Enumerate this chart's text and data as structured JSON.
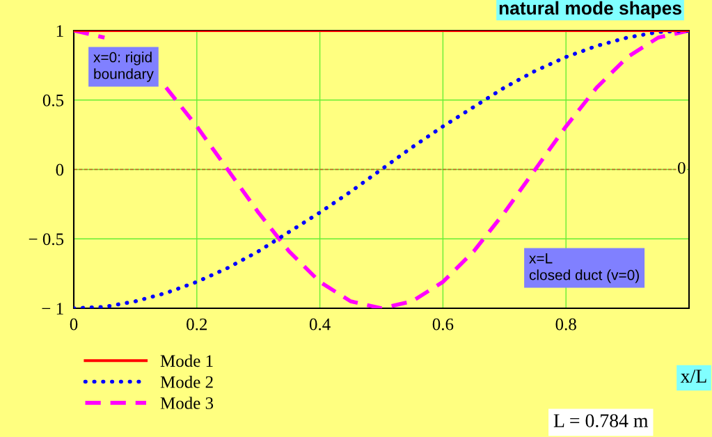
{
  "chart_data": {
    "type": "line",
    "title": "natural mode shapes",
    "xlabel": "x/L",
    "x": [
      0,
      0.05,
      0.1,
      0.15,
      0.2,
      0.25,
      0.3,
      0.35,
      0.4,
      0.45,
      0.5,
      0.55,
      0.6,
      0.65,
      0.7,
      0.75,
      0.8,
      0.85,
      0.9,
      0.95,
      1
    ],
    "series": [
      {
        "name": "Mode 1",
        "color": "#ff0000",
        "line_style": "solid",
        "values": [
          1,
          1,
          1,
          1,
          1,
          1,
          1,
          1,
          1,
          1,
          1,
          1,
          1,
          1,
          1,
          1,
          1,
          1,
          1,
          1,
          1
        ]
      },
      {
        "name": "Mode 2",
        "color": "#0000ff",
        "line_style": "dotted",
        "values": [
          -1,
          -0.99,
          -0.95,
          -0.89,
          -0.81,
          -0.71,
          -0.59,
          -0.45,
          -0.31,
          -0.16,
          0,
          0.16,
          0.31,
          0.45,
          0.59,
          0.71,
          0.81,
          0.89,
          0.95,
          0.99,
          1
        ]
      },
      {
        "name": "Mode 3",
        "color": "#ff00ff",
        "line_style": "dashed",
        "values": [
          1,
          0.95,
          null,
          0.59,
          0.31,
          0,
          -0.31,
          -0.59,
          -0.81,
          -0.95,
          -1,
          -0.95,
          -0.81,
          -0.59,
          -0.31,
          0,
          0.31,
          0.59,
          0.81,
          0.95,
          1
        ]
      }
    ],
    "xlim": [
      0,
      1
    ],
    "xticks": [
      0,
      0.2,
      0.4,
      0.6,
      0.8
    ],
    "ylim": [
      -1,
      1
    ],
    "yticks": [
      {
        "value": -1,
        "label": "− 1"
      },
      {
        "value": -0.5,
        "label": "− 0.5"
      },
      0,
      0.5,
      1
    ],
    "ref_lines": [
      {
        "axis": "y",
        "value": 0,
        "label": "0",
        "color": "#c06020",
        "line_style": "dashed"
      }
    ],
    "annotations": [
      "x=0: rigid\nboundary",
      "x=L\nclosed duct (v=0)",
      "L = 0.784 m"
    ],
    "grid": true,
    "legend": "bottom left",
    "marker": "none"
  }
}
